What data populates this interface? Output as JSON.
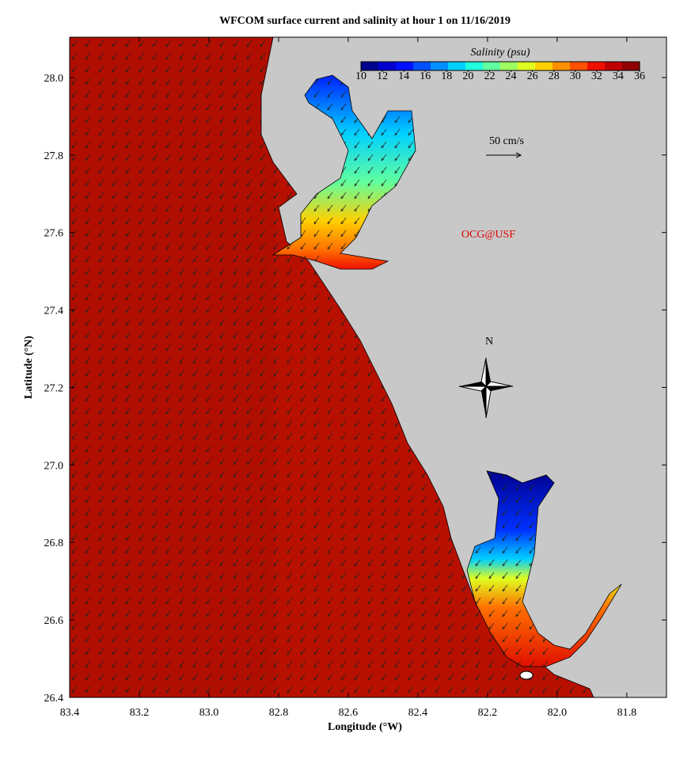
{
  "title": "WFCOM surface current and salinity at hour 1 on 11/16/2019",
  "x_axis": {
    "label": "Longitude (°W)",
    "lim": [
      83.4,
      81.686
    ],
    "ticks": [
      83.4,
      83.2,
      {
        "value": 83,
        "label": "83.0"
      },
      82.8,
      82.6,
      82.4,
      82.2,
      {
        "value": 82,
        "label": "82.0"
      },
      81.8
    ]
  },
  "y_axis": {
    "label": "Latitude (°N)",
    "lim": [
      26.4,
      28.104
    ],
    "ticks": [
      26.4,
      26.6,
      26.8,
      {
        "value": 27,
        "label": "27.0"
      },
      27.2,
      27.4,
      27.6,
      27.8,
      {
        "value": 28,
        "label": "28.0"
      }
    ]
  },
  "colorbar": {
    "label": "Salinity (psu)",
    "lim": [
      10,
      36
    ],
    "ticks": [
      10,
      12,
      14,
      16,
      18,
      20,
      22,
      24,
      26,
      28,
      30,
      32,
      34,
      36
    ],
    "colors": [
      "#00008f",
      "#0000cf",
      "#0010ff",
      "#0050ff",
      "#0090ff",
      "#00d0ff",
      "#20ffdf",
      "#60ff9f",
      "#a0ff60",
      "#dfff20",
      "#ffd000",
      "#ff9000",
      "#ff5000",
      "#ef1000",
      "#c00000",
      "#900000"
    ]
  },
  "annotations": {
    "scale": "50 cm/s",
    "credit": "OCG@USF",
    "north": "N"
  }
}
